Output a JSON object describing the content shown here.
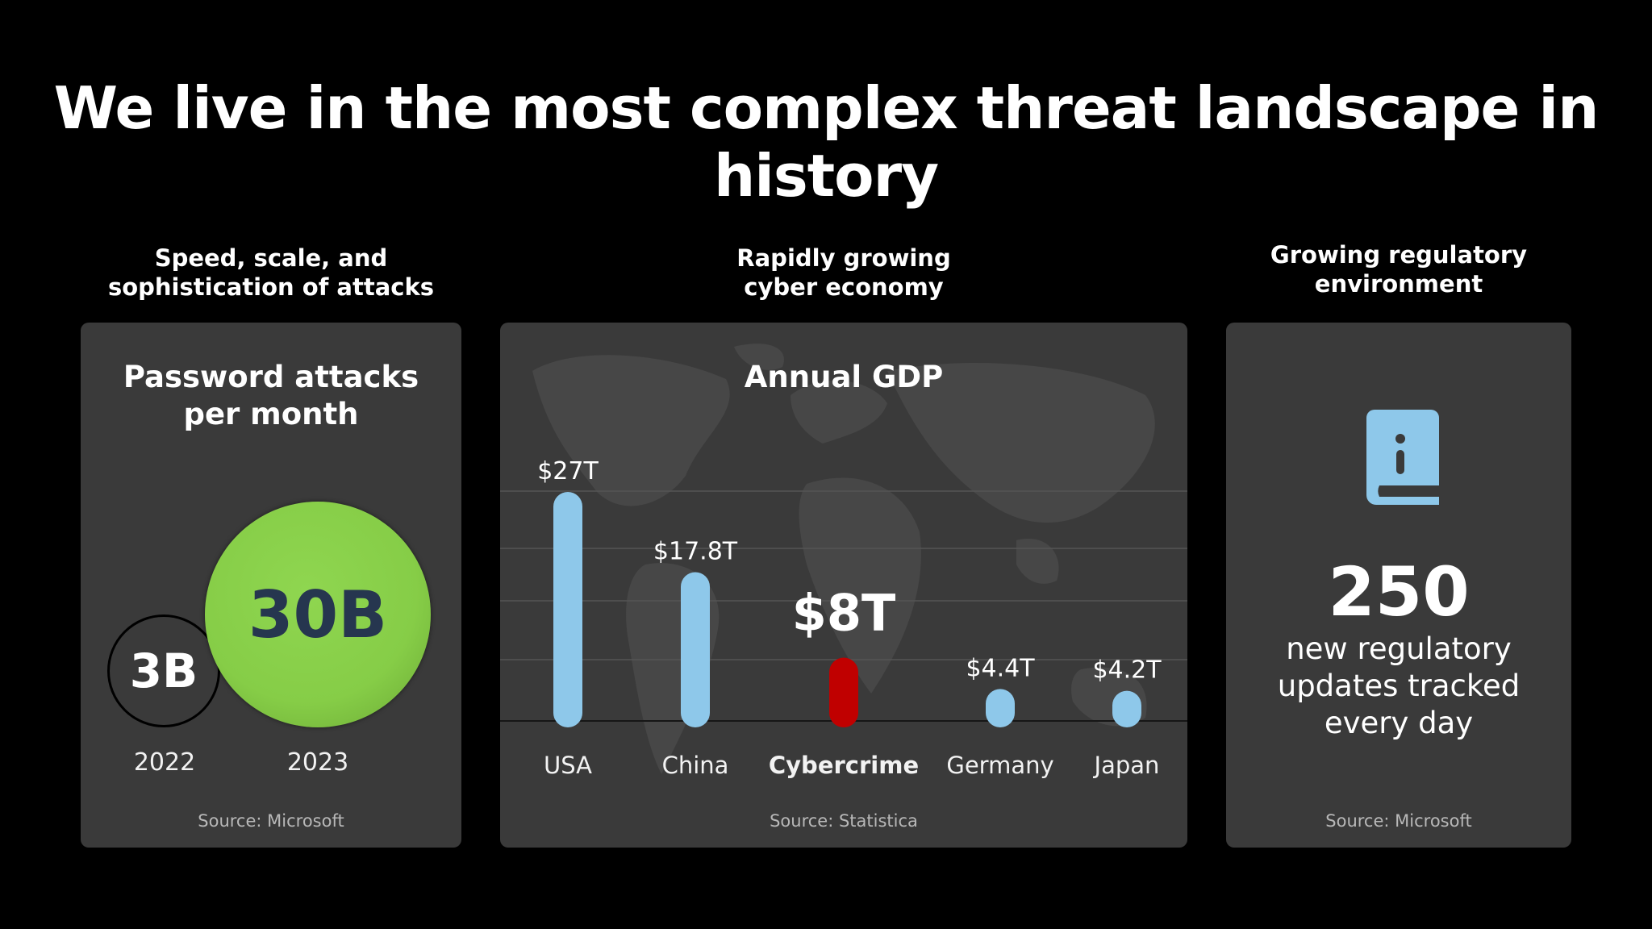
{
  "slide": {
    "title": "We live in the most complex threat landscape in history"
  },
  "columns": [
    {
      "heading_line1": "Speed, scale, and",
      "heading_line2": "sophistication of attacks"
    },
    {
      "heading_line1": "Rapidly growing",
      "heading_line2": "cyber economy"
    },
    {
      "heading_line1": "Growing regulatory",
      "heading_line2": "environment"
    }
  ],
  "panels": {
    "attacks": {
      "title_line1": "Password attacks",
      "title_line2": "per month",
      "source": "Source: Microsoft",
      "colors": {
        "bubble_2023": "#86cd47",
        "bubble_2023_text": "#26364f",
        "bubble_2022_border": "#000000"
      }
    },
    "gdp": {
      "title": "Annual GDP",
      "source": "Source: Statistica",
      "colors": {
        "bar": "#8ec8ea",
        "highlight_bar": "#c00000"
      }
    },
    "regulatory": {
      "icon": "book-info-icon",
      "number": "250",
      "desc_line1": "new regulatory",
      "desc_line2": "updates tracked",
      "desc_line3": "every day",
      "source": "Source: Microsoft",
      "colors": {
        "icon": "#8ec8ea"
      }
    }
  },
  "chart_data": [
    {
      "type": "bubble",
      "title": "Password attacks per month",
      "categories": [
        "2022",
        "2023"
      ],
      "values": [
        3,
        30
      ],
      "labels": [
        "3B",
        "30B"
      ]
    },
    {
      "type": "bar",
      "title": "Annual GDP",
      "categories": [
        "USA",
        "China",
        "Cybercrime",
        "Germany",
        "Japan"
      ],
      "values": [
        27,
        17.8,
        8,
        4.4,
        4.2
      ],
      "labels": [
        "$27T",
        "$17.8T",
        "$8T",
        "$4.4T",
        "$4.2T"
      ],
      "highlight": "Cybercrime",
      "ylim": [
        0,
        27
      ],
      "grid": true
    }
  ]
}
